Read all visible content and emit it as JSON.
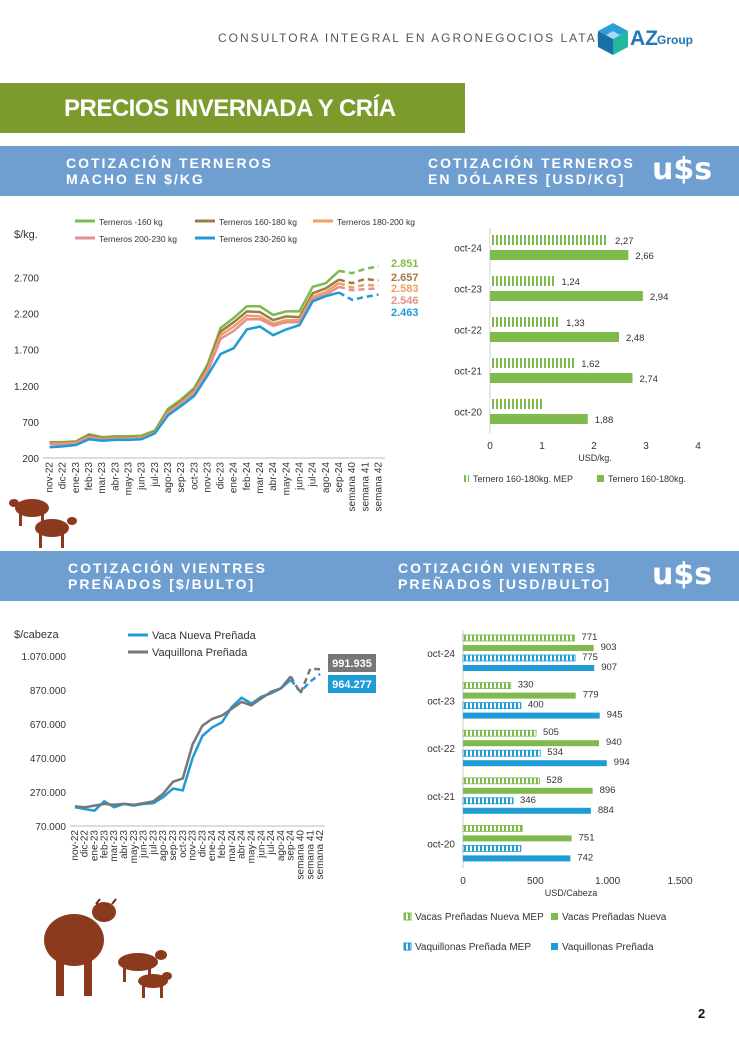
{
  "header": {
    "tagline": "CONSULTORA INTEGRAL EN AGRONEGOCIOS LATAM",
    "logo_text_1": "AZ",
    "logo_text_2": "Group"
  },
  "page_title": "PRECIOS INVERNADA Y CRÍA",
  "bands": {
    "terneros_ars": [
      "COTIZACIÓN TERNEROS",
      "MACHO EN  $/KG"
    ],
    "terneros_usd": [
      "COTIZACIÓN TERNEROS",
      "EN DÓLARES [USD/KG]"
    ],
    "vientres_ars": [
      "COTIZACIÓN VIENTRES",
      "PREÑADOS [$/BULTO]"
    ],
    "vientres_usd": [
      "COTIZACIÓN VIENTRES",
      "PREÑADOS [USD/BULTO]"
    ],
    "usd_symbol": "u$s"
  },
  "page_number": "2",
  "chart_data": [
    {
      "type": "line",
      "ylabel": "$/kg.",
      "ylim": [
        200,
        2900
      ],
      "yticks": [
        "200",
        "700",
        "1.200",
        "1.700",
        "2.200",
        "2.700"
      ],
      "ytick_values": [
        200,
        700,
        1200,
        1700,
        2200,
        2700
      ],
      "x": [
        "nov-22",
        "dic-22",
        "ene-23",
        "feb-23",
        "mar-23",
        "abr-23",
        "may-23",
        "jun-23",
        "jul-23",
        "ago-23",
        "sep-23",
        "oct-23",
        "nov-23",
        "dic-23",
        "ene-24",
        "feb-24",
        "mar-24",
        "abr-24",
        "may-24",
        "jun-24",
        "jul-24",
        "ago-24",
        "sep-24",
        "semana 40",
        "semana 41",
        "semana 42"
      ],
      "legend_position": "top",
      "series": [
        {
          "name": "Terneros -160 kg",
          "color": "#7fba4c",
          "end_label": "2.851",
          "values": [
            420,
            420,
            430,
            530,
            490,
            500,
            500,
            510,
            580,
            880,
            1010,
            1170,
            1490,
            2000,
            2140,
            2300,
            2300,
            2180,
            2230,
            2230,
            2570,
            2620,
            2790,
            2760,
            2820,
            2851
          ]
        },
        {
          "name": "Terneros 160-180 kg",
          "color": "#9c7c4a",
          "end_label": "2.657",
          "values": [
            410,
            410,
            420,
            510,
            470,
            480,
            480,
            490,
            560,
            850,
            980,
            1140,
            1450,
            1950,
            2080,
            2230,
            2220,
            2110,
            2160,
            2150,
            2480,
            2550,
            2670,
            2620,
            2680,
            2657
          ]
        },
        {
          "name": "Terneros 180-200 kg",
          "color": "#f0a060",
          "end_label": "2.583",
          "values": [
            400,
            400,
            410,
            490,
            460,
            470,
            470,
            480,
            550,
            830,
            960,
            1120,
            1420,
            1900,
            2020,
            2170,
            2160,
            2060,
            2110,
            2110,
            2430,
            2500,
            2620,
            2560,
            2600,
            2583
          ]
        },
        {
          "name": "Terneros 200-230 kg",
          "color": "#e59090",
          "end_label": "2.546",
          "values": [
            390,
            390,
            400,
            480,
            450,
            460,
            460,
            470,
            540,
            810,
            950,
            1100,
            1390,
            1850,
            1960,
            2120,
            2120,
            2030,
            2080,
            2080,
            2400,
            2460,
            2570,
            2520,
            2540,
            2546
          ]
        },
        {
          "name": "Terneros 230-260 kg",
          "color": "#1f9bd6",
          "end_label": "2.463",
          "values": [
            350,
            360,
            380,
            460,
            440,
            450,
            450,
            460,
            540,
            790,
            920,
            1060,
            1340,
            1640,
            1720,
            1980,
            2020,
            1900,
            1980,
            2040,
            2370,
            2440,
            2490,
            2390,
            2430,
            2463
          ]
        }
      ]
    },
    {
      "type": "bar",
      "orientation": "horizontal",
      "xlabel": "USD/kg.",
      "xlim": [
        0,
        4
      ],
      "xticks": [
        "0",
        "1",
        "2",
        "3",
        "4"
      ],
      "xtick_values": [
        0,
        1,
        2,
        3,
        4
      ],
      "categories": [
        "oct-24",
        "oct-23",
        "oct-22",
        "oct-21",
        "oct-20"
      ],
      "series": [
        {
          "name": "Ternero 160-180kg. MEP",
          "color": "#7fba4c",
          "pattern": "stripes",
          "values": [
            2.27,
            1.24,
            1.33,
            1.62,
            1.0
          ],
          "labels": [
            "2,27",
            "1,24",
            "1,33",
            "1,62",
            ""
          ]
        },
        {
          "name": "Ternero 160-180kg.",
          "color": "#7fba4c",
          "pattern": "solid",
          "values": [
            2.66,
            2.94,
            2.48,
            2.74,
            1.88
          ],
          "labels": [
            "2,66",
            "2,94",
            "2,48",
            "2,74",
            "1,88"
          ]
        }
      ]
    },
    {
      "type": "line",
      "ylabel": "$/cabeza",
      "ylim": [
        70000,
        1070000
      ],
      "yticks": [
        "70.000",
        "270.000",
        "470.000",
        "670.000",
        "870.000",
        "1.070.000"
      ],
      "ytick_values": [
        70000,
        270000,
        470000,
        670000,
        870000,
        1070000
      ],
      "x": [
        "nov-22",
        "dic-22",
        "ene-23",
        "feb-23",
        "mar-23",
        "abr-23",
        "may-23",
        "jun-23",
        "jul-23",
        "ago-23",
        "sep-23",
        "oct-23",
        "nov-23",
        "dic-23",
        "ene-24",
        "feb-24",
        "mar-24",
        "abr-24",
        "may-24",
        "jun-24",
        "jul-24",
        "ago-24",
        "sep-24",
        "semana 40",
        "semana 41",
        "semana 42"
      ],
      "legend_position": "top",
      "series": [
        {
          "name": "Vaca Nueva Preñada",
          "color": "#1f9bd6",
          "end_label": "964.277",
          "values": [
            180000,
            170000,
            160000,
            215000,
            180000,
            200000,
            190000,
            200000,
            205000,
            240000,
            290000,
            280000,
            470000,
            600000,
            650000,
            680000,
            770000,
            825000,
            790000,
            830000,
            850000,
            880000,
            930000,
            860000,
            920000,
            964277
          ]
        },
        {
          "name": "Vaquillona Preñada",
          "color": "#777777",
          "end_label": "991.935",
          "values": [
            185000,
            180000,
            190000,
            200000,
            195000,
            200000,
            195000,
            205000,
            215000,
            260000,
            330000,
            350000,
            550000,
            660000,
            700000,
            720000,
            760000,
            800000,
            780000,
            820000,
            860000,
            880000,
            950000,
            850000,
            995000,
            991935
          ]
        }
      ]
    },
    {
      "type": "bar",
      "orientation": "horizontal",
      "xlabel": "USD/Cabeza",
      "xlim": [
        0,
        1500
      ],
      "xticks": [
        "0",
        "500",
        "1.000",
        "1.500"
      ],
      "xtick_values": [
        0,
        500,
        1000,
        1500
      ],
      "categories": [
        "oct-24",
        "oct-23",
        "oct-22",
        "oct-21",
        "oct-20"
      ],
      "series": [
        {
          "name": "Vacas Preñadas Nueva MEP",
          "color": "#7fba4c",
          "pattern": "stripes",
          "values": [
            771,
            330,
            505,
            528,
            410
          ],
          "labels": [
            "771",
            "330",
            "505",
            "528",
            ""
          ]
        },
        {
          "name": "Vacas Preñadas Nueva",
          "color": "#7fba4c",
          "pattern": "solid",
          "values": [
            903,
            779,
            940,
            896,
            751
          ],
          "labels": [
            "903",
            "779",
            "940",
            "896",
            "751"
          ]
        },
        {
          "name": "Vaquillonas Preñada MEP",
          "color": "#1f9bd6",
          "pattern": "stripes",
          "values": [
            775,
            400,
            534,
            346,
            400
          ],
          "labels": [
            "775",
            "400",
            "534",
            "346",
            ""
          ]
        },
        {
          "name": "Vaquillonas Preñada",
          "color": "#1f9bd6",
          "pattern": "solid",
          "values": [
            907,
            945,
            994,
            884,
            742
          ],
          "labels": [
            "907",
            "945",
            "994",
            "884",
            "742"
          ]
        }
      ]
    }
  ]
}
